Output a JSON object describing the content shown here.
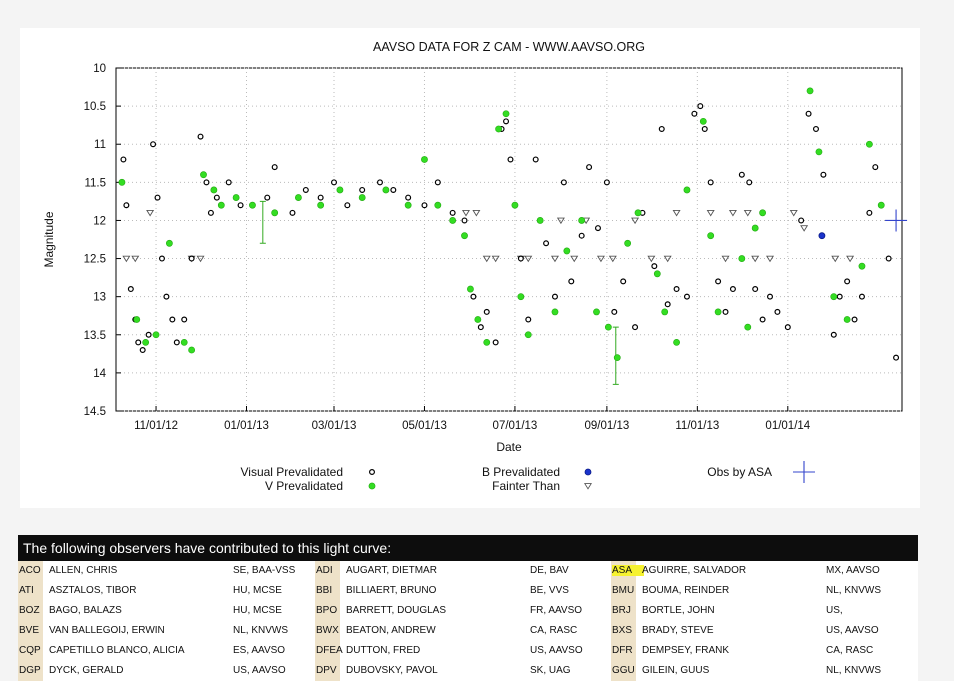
{
  "chart_data": {
    "type": "scatter",
    "title": "AAVSO DATA FOR Z CAM - WWW.AAVSO.ORG",
    "xlabel": "Date",
    "ylabel": "Magnitude",
    "x_axis": {
      "type": "date",
      "range": [
        "2012-10-05",
        "2014-03-19"
      ],
      "ticks": [
        {
          "date": "2012-11-01",
          "label": "11/01/12"
        },
        {
          "date": "2013-01-01",
          "label": "01/01/13"
        },
        {
          "date": "2013-03-01",
          "label": "03/01/13"
        },
        {
          "date": "2013-05-01",
          "label": "05/01/13"
        },
        {
          "date": "2013-07-01",
          "label": "07/01/13"
        },
        {
          "date": "2013-09-01",
          "label": "09/01/13"
        },
        {
          "date": "2013-11-01",
          "label": "11/01/13"
        },
        {
          "date": "2014-01-01",
          "label": "01/01/14"
        }
      ]
    },
    "y_axis": {
      "inverted": true,
      "range": [
        10,
        14.5
      ],
      "ticks": [
        "10",
        "10.5",
        "11",
        "11.5",
        "12",
        "12.5",
        "13",
        "13.5",
        "14",
        "14.5"
      ]
    },
    "grid": true,
    "legend": [
      {
        "label": "Visual Prevalidated",
        "color": "#000000",
        "marker": "circle-outline"
      },
      {
        "label": "V Prevalidated",
        "color": "#33dd22",
        "marker": "filled-circle"
      },
      {
        "label": "B Prevalidated",
        "color": "#1a33cc",
        "marker": "circle-outline"
      },
      {
        "label": "Fainter Than",
        "color": "#555555",
        "marker": "triangle-down"
      },
      {
        "label": "Obs by ASA",
        "color": "#3344cc",
        "marker": "cross"
      }
    ],
    "series": [
      {
        "name": "Visual Prevalidated",
        "type": "visual",
        "points": [
          [
            "2012-10-10",
            11.2
          ],
          [
            "2012-10-12",
            11.8
          ],
          [
            "2012-10-15",
            12.9
          ],
          [
            "2012-10-18",
            13.3
          ],
          [
            "2012-10-20",
            13.6
          ],
          [
            "2012-10-23",
            13.7
          ],
          [
            "2012-10-27",
            13.5
          ],
          [
            "2012-10-30",
            11.0
          ],
          [
            "2012-11-02",
            11.7
          ],
          [
            "2012-11-05",
            12.5
          ],
          [
            "2012-11-08",
            13.0
          ],
          [
            "2012-11-12",
            13.3
          ],
          [
            "2012-11-15",
            13.6
          ],
          [
            "2012-11-20",
            13.3
          ],
          [
            "2012-11-25",
            12.5
          ],
          [
            "2012-12-01",
            10.9
          ],
          [
            "2012-12-05",
            11.5
          ],
          [
            "2012-12-08",
            11.9
          ],
          [
            "2012-12-12",
            11.7
          ],
          [
            "2012-12-20",
            11.5
          ],
          [
            "2012-12-28",
            11.8
          ],
          [
            "2013-01-05",
            11.8
          ],
          [
            "2013-01-15",
            11.7
          ],
          [
            "2013-01-20",
            11.3
          ],
          [
            "2013-02-01",
            11.9
          ],
          [
            "2013-02-10",
            11.6
          ],
          [
            "2013-02-20",
            11.7
          ],
          [
            "2013-03-01",
            11.5
          ],
          [
            "2013-03-10",
            11.8
          ],
          [
            "2013-03-20",
            11.6
          ],
          [
            "2013-04-01",
            11.5
          ],
          [
            "2013-04-10",
            11.6
          ],
          [
            "2013-04-20",
            11.7
          ],
          [
            "2013-05-01",
            11.8
          ],
          [
            "2013-05-10",
            11.5
          ],
          [
            "2013-05-20",
            11.9
          ],
          [
            "2013-05-28",
            12.0
          ],
          [
            "2013-06-03",
            13.0
          ],
          [
            "2013-06-08",
            13.4
          ],
          [
            "2013-06-12",
            13.2
          ],
          [
            "2013-06-18",
            13.6
          ],
          [
            "2013-06-22",
            10.8
          ],
          [
            "2013-06-25",
            10.7
          ],
          [
            "2013-06-28",
            11.2
          ],
          [
            "2013-07-05",
            12.5
          ],
          [
            "2013-07-10",
            13.3
          ],
          [
            "2013-07-15",
            11.2
          ],
          [
            "2013-07-22",
            12.3
          ],
          [
            "2013-07-28",
            13.0
          ],
          [
            "2013-08-03",
            11.5
          ],
          [
            "2013-08-08",
            12.8
          ],
          [
            "2013-08-15",
            12.2
          ],
          [
            "2013-08-20",
            11.3
          ],
          [
            "2013-08-26",
            12.1
          ],
          [
            "2013-09-01",
            11.5
          ],
          [
            "2013-09-06",
            13.2
          ],
          [
            "2013-09-12",
            12.8
          ],
          [
            "2013-09-20",
            13.4
          ],
          [
            "2013-09-25",
            11.9
          ],
          [
            "2013-10-03",
            12.6
          ],
          [
            "2013-10-08",
            10.8
          ],
          [
            "2013-10-12",
            13.1
          ],
          [
            "2013-10-18",
            12.9
          ],
          [
            "2013-10-25",
            13.0
          ],
          [
            "2013-10-30",
            10.6
          ],
          [
            "2013-11-03",
            10.5
          ],
          [
            "2013-11-06",
            10.8
          ],
          [
            "2013-11-10",
            11.5
          ],
          [
            "2013-11-15",
            12.8
          ],
          [
            "2013-11-20",
            13.2
          ],
          [
            "2013-11-25",
            12.9
          ],
          [
            "2013-12-01",
            11.4
          ],
          [
            "2013-12-06",
            11.5
          ],
          [
            "2013-12-10",
            12.9
          ],
          [
            "2013-12-15",
            13.3
          ],
          [
            "2013-12-20",
            13.0
          ],
          [
            "2013-12-25",
            13.2
          ],
          [
            "2014-01-01",
            13.4
          ],
          [
            "2014-01-10",
            12.0
          ],
          [
            "2014-01-15",
            10.6
          ],
          [
            "2014-01-20",
            10.8
          ],
          [
            "2014-01-25",
            11.4
          ],
          [
            "2014-02-01",
            13.5
          ],
          [
            "2014-02-05",
            13.0
          ],
          [
            "2014-02-10",
            12.8
          ],
          [
            "2014-02-15",
            13.3
          ],
          [
            "2014-02-20",
            13.0
          ],
          [
            "2014-02-25",
            11.9
          ],
          [
            "2014-03-01",
            11.3
          ],
          [
            "2014-03-05",
            11.8
          ],
          [
            "2014-03-10",
            12.5
          ],
          [
            "2014-03-15",
            13.8
          ]
        ]
      },
      {
        "name": "V Prevalidated",
        "type": "v",
        "points": [
          [
            "2012-10-09",
            11.5
          ],
          [
            "2012-10-19",
            13.3
          ],
          [
            "2012-10-25",
            13.6
          ],
          [
            "2012-11-01",
            13.5
          ],
          [
            "2012-11-10",
            12.3
          ],
          [
            "2012-11-20",
            13.6
          ],
          [
            "2012-11-25",
            13.7
          ],
          [
            "2012-12-03",
            11.4
          ],
          [
            "2012-12-10",
            11.6
          ],
          [
            "2012-12-15",
            11.8
          ],
          [
            "2012-12-25",
            11.7
          ],
          [
            "2013-01-05",
            11.8
          ],
          [
            "2013-01-20",
            11.9
          ],
          [
            "2013-02-05",
            11.7
          ],
          [
            "2013-02-20",
            11.8
          ],
          [
            "2013-03-05",
            11.6
          ],
          [
            "2013-03-20",
            11.7
          ],
          [
            "2013-04-05",
            11.6
          ],
          [
            "2013-04-20",
            11.8
          ],
          [
            "2013-05-01",
            11.2
          ],
          [
            "2013-05-10",
            11.8
          ],
          [
            "2013-05-20",
            12.0
          ],
          [
            "2013-05-28",
            12.2
          ],
          [
            "2013-06-01",
            12.9
          ],
          [
            "2013-06-06",
            13.3
          ],
          [
            "2013-06-12",
            13.6
          ],
          [
            "2013-06-20",
            10.8
          ],
          [
            "2013-06-25",
            10.6
          ],
          [
            "2013-07-01",
            11.8
          ],
          [
            "2013-07-05",
            13.0
          ],
          [
            "2013-07-10",
            13.5
          ],
          [
            "2013-07-18",
            12.0
          ],
          [
            "2013-07-28",
            13.2
          ],
          [
            "2013-08-05",
            12.4
          ],
          [
            "2013-08-15",
            12.0
          ],
          [
            "2013-08-25",
            13.2
          ],
          [
            "2013-09-02",
            13.4
          ],
          [
            "2013-09-08",
            13.8
          ],
          [
            "2013-09-15",
            12.3
          ],
          [
            "2013-09-22",
            11.9
          ],
          [
            "2013-10-05",
            12.7
          ],
          [
            "2013-10-10",
            13.2
          ],
          [
            "2013-10-18",
            13.6
          ],
          [
            "2013-10-25",
            11.6
          ],
          [
            "2013-11-05",
            10.7
          ],
          [
            "2013-11-10",
            12.2
          ],
          [
            "2013-11-15",
            13.2
          ],
          [
            "2013-12-01",
            12.5
          ],
          [
            "2013-12-05",
            13.4
          ],
          [
            "2013-12-10",
            12.1
          ],
          [
            "2013-12-15",
            11.9
          ],
          [
            "2014-01-16",
            10.3
          ],
          [
            "2014-01-22",
            11.1
          ],
          [
            "2014-02-01",
            13.0
          ],
          [
            "2014-02-10",
            13.3
          ],
          [
            "2014-02-20",
            12.6
          ],
          [
            "2014-02-25",
            11.0
          ],
          [
            "2014-03-05",
            11.8
          ]
        ]
      },
      {
        "name": "B Prevalidated",
        "type": "b",
        "points": [
          [
            "2014-01-24",
            12.2
          ]
        ]
      },
      {
        "name": "Fainter Than",
        "type": "fainter",
        "points": [
          [
            "2012-10-12",
            12.5
          ],
          [
            "2012-10-18",
            12.5
          ],
          [
            "2012-10-28",
            11.9
          ],
          [
            "2012-11-25",
            12.5
          ],
          [
            "2012-12-01",
            12.5
          ],
          [
            "2013-05-29",
            11.9
          ],
          [
            "2013-06-05",
            11.9
          ],
          [
            "2013-06-12",
            12.5
          ],
          [
            "2013-06-18",
            12.5
          ],
          [
            "2013-07-05",
            12.5
          ],
          [
            "2013-07-10",
            12.5
          ],
          [
            "2013-07-28",
            12.5
          ],
          [
            "2013-08-01",
            12.0
          ],
          [
            "2013-08-10",
            12.5
          ],
          [
            "2013-08-18",
            12.0
          ],
          [
            "2013-08-28",
            12.5
          ],
          [
            "2013-09-05",
            12.5
          ],
          [
            "2013-09-20",
            12.0
          ],
          [
            "2013-10-01",
            12.5
          ],
          [
            "2013-10-12",
            12.5
          ],
          [
            "2013-10-18",
            11.9
          ],
          [
            "2013-11-10",
            11.9
          ],
          [
            "2013-11-20",
            12.5
          ],
          [
            "2013-11-25",
            11.9
          ],
          [
            "2013-12-05",
            11.9
          ],
          [
            "2013-12-10",
            12.5
          ],
          [
            "2013-12-20",
            12.5
          ],
          [
            "2014-01-05",
            11.9
          ],
          [
            "2014-01-12",
            12.1
          ],
          [
            "2014-02-02",
            12.5
          ],
          [
            "2014-02-12",
            12.5
          ]
        ]
      },
      {
        "name": "Obs by ASA",
        "type": "asa",
        "points": [
          [
            "2014-03-15",
            12.0
          ]
        ]
      }
    ],
    "error_bars": [
      [
        "2013-01-12",
        12.05,
        11.75,
        12.3
      ],
      [
        "2013-09-07",
        13.7,
        13.4,
        14.15
      ]
    ]
  },
  "observers": {
    "header": "The following observers have contributed to this light curve:",
    "highlight_color": "#f6f230",
    "rows": [
      [
        [
          "ACO",
          "ALLEN, CHRIS",
          "SE, BAA-VSS"
        ],
        [
          "ADI",
          "AUGART, DIETMAR",
          "DE, BAV"
        ],
        [
          "ASA",
          "AGUIRRE, SALVADOR",
          "MX, AAVSO"
        ]
      ],
      [
        [
          "ATI",
          "ASZTALOS, TIBOR",
          "HU, MCSE"
        ],
        [
          "BBI",
          "BILLIAERT, BRUNO",
          "BE, VVS"
        ],
        [
          "BMU",
          "BOUMA, REINDER",
          "NL, KNVWS"
        ]
      ],
      [
        [
          "BOZ",
          "BAGO, BALAZS",
          "HU, MCSE"
        ],
        [
          "BPO",
          "BARRETT, DOUGLAS",
          "FR, AAVSO"
        ],
        [
          "BRJ",
          "BORTLE, JOHN",
          "US,"
        ]
      ],
      [
        [
          "BVE",
          "VAN BALLEGOIJ, ERWIN",
          "NL, KNVWS"
        ],
        [
          "BWX",
          "BEATON, ANDREW",
          "CA, RASC"
        ],
        [
          "BXS",
          "BRADY, STEVE",
          "US, AAVSO"
        ]
      ],
      [
        [
          "CQP",
          "CAPETILLO BLANCO, ALICIA",
          "ES, AAVSO"
        ],
        [
          "DFEA",
          "DUTTON, FRED",
          "US, AAVSO"
        ],
        [
          "DFR",
          "DEMPSEY, FRANK",
          "CA, RASC"
        ]
      ],
      [
        [
          "DGP",
          "DYCK, GERALD",
          "US, AAVSO"
        ],
        [
          "DPV",
          "DUBOVSKY, PAVOL",
          "SK, UAG"
        ],
        [
          "GGU",
          "GILEIN, GUUS",
          "NL, KNVWS"
        ]
      ]
    ]
  }
}
